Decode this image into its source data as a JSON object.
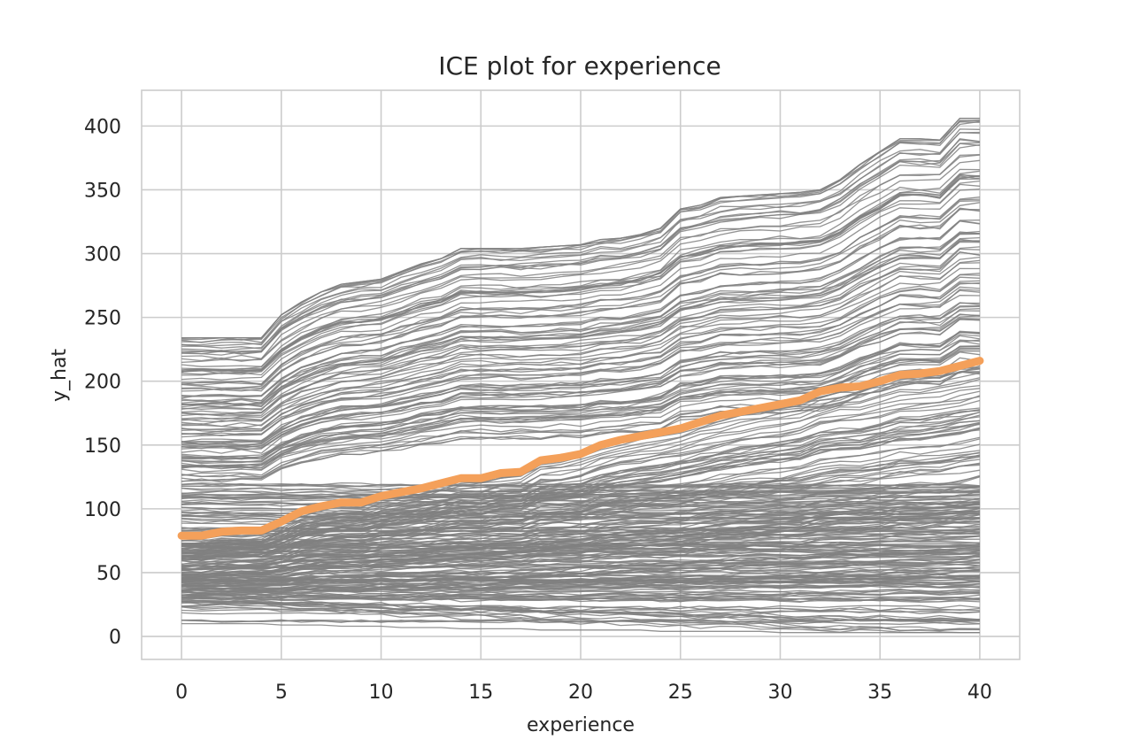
{
  "chart_data": {
    "type": "line",
    "title": "ICE plot for experience",
    "xlabel": "experience",
    "ylabel": "y_hat",
    "xlim": [
      -2,
      42
    ],
    "ylim": [
      -18,
      428
    ],
    "x_ticks": [
      0,
      5,
      10,
      15,
      20,
      25,
      30,
      35,
      40
    ],
    "y_ticks": [
      0,
      50,
      100,
      150,
      200,
      250,
      300,
      350,
      400
    ],
    "grid": true,
    "legend": "none",
    "colors": {
      "ice": "#808080",
      "pdp": "#f4a05a",
      "grid": "#cccccc",
      "text": "#262626"
    },
    "x": [
      0,
      1,
      2,
      3,
      4,
      5,
      6,
      7,
      8,
      9,
      10,
      11,
      12,
      13,
      14,
      15,
      16,
      17,
      18,
      19,
      20,
      21,
      22,
      23,
      24,
      25,
      26,
      27,
      28,
      29,
      30,
      31,
      32,
      33,
      34,
      35,
      36,
      37,
      38,
      39,
      40
    ],
    "series": [
      {
        "role": "average",
        "values": [
          79,
          79,
          82,
          83,
          83,
          90,
          98,
          102,
          105,
          105,
          110,
          113,
          116,
          120,
          124,
          124,
          128,
          129,
          138,
          140,
          143,
          150,
          154,
          157,
          160,
          163,
          168,
          173,
          176,
          179,
          182,
          185,
          192,
          195,
          196,
          200,
          205,
          206,
          208,
          212,
          216
        ]
      },
      {
        "role": "individual-envelope-top",
        "values": [
          234,
          234,
          234,
          234,
          234,
          252,
          262,
          270,
          276,
          278,
          280,
          286,
          292,
          296,
          304,
          304,
          304,
          304,
          305,
          306,
          307,
          311,
          312,
          315,
          320,
          335,
          338,
          344,
          345,
          346,
          347,
          348,
          350,
          358,
          370,
          380,
          390,
          390,
          389,
          406,
          406
        ]
      },
      {
        "role": "individual-envelope-bottom",
        "values": [
          10,
          10,
          10,
          10,
          10,
          9,
          9,
          9,
          8,
          8,
          8,
          7,
          7,
          7,
          6,
          6,
          6,
          6,
          5,
          5,
          5,
          5,
          5,
          5,
          4,
          4,
          4,
          4,
          4,
          4,
          3,
          3,
          3,
          3,
          3,
          3,
          3,
          3,
          3,
          3,
          3
        ]
      }
    ]
  }
}
